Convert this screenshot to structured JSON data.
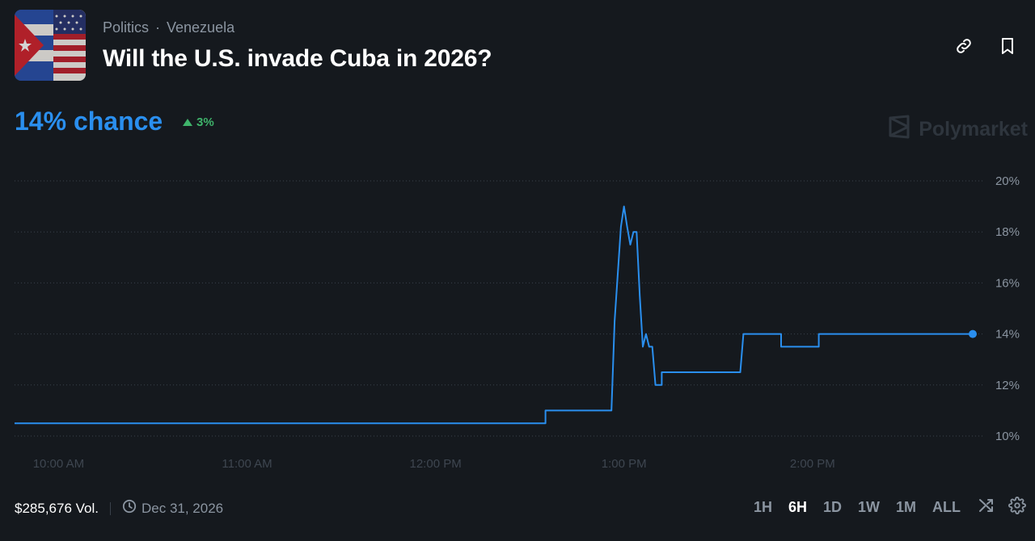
{
  "header": {
    "breadcrumb": [
      "Politics",
      "Venezuela"
    ],
    "separator": "·",
    "title": "Will the U.S. invade Cuba in 2026?"
  },
  "price": {
    "chance_text": "14% chance",
    "change_text": "3%",
    "change_direction": "up",
    "up_color": "#3fb46b",
    "accent": "#2a8fef"
  },
  "brand": "Polymarket",
  "footer": {
    "volume": "$285,676 Vol.",
    "end_date": "Dec 31, 2026"
  },
  "ranges": [
    {
      "label": "1H",
      "active": false
    },
    {
      "label": "6H",
      "active": true
    },
    {
      "label": "1D",
      "active": false
    },
    {
      "label": "1W",
      "active": false
    },
    {
      "label": "1M",
      "active": false
    },
    {
      "label": "ALL",
      "active": false
    }
  ],
  "icons": {
    "link": "link-icon",
    "bookmark": "bookmark-icon",
    "clock": "clock-icon",
    "shuffle": "shuffle-icon",
    "settings": "gear-icon"
  },
  "chart_data": {
    "type": "line",
    "title": "",
    "xlabel": "",
    "ylabel": "",
    "ylim": [
      9.7,
      20.3
    ],
    "y_ticks": [
      10,
      12,
      14,
      16,
      18,
      20
    ],
    "y_tick_labels": [
      "10%",
      "12%",
      "14%",
      "16%",
      "18%",
      "20%"
    ],
    "x_range": [
      "09:46",
      "14:51"
    ],
    "x_ticks": [
      "10:00",
      "11:00",
      "12:00",
      "13:00",
      "14:00"
    ],
    "x_tick_labels": [
      "10:00 AM",
      "11:00 AM",
      "12:00 PM",
      "1:00 PM",
      "2:00 PM"
    ],
    "grid": "horizontal-dotted",
    "line_color": "#2a8fef",
    "series": [
      {
        "points": [
          [
            "09:46",
            10.5
          ],
          [
            "12:35",
            10.5
          ],
          [
            "12:35",
            11.0
          ],
          [
            "12:56",
            11.0
          ],
          [
            "12:57",
            14.5
          ],
          [
            "12:59",
            18.2
          ],
          [
            "13:00",
            19.0
          ],
          [
            "13:01",
            18.2
          ],
          [
            "13:02",
            17.5
          ],
          [
            "13:03",
            18.0
          ],
          [
            "13:04",
            18.0
          ],
          [
            "13:05",
            15.5
          ],
          [
            "13:06",
            13.5
          ],
          [
            "13:07",
            14.0
          ],
          [
            "13:08",
            13.5
          ],
          [
            "13:09",
            13.5
          ],
          [
            "13:10",
            12.0
          ],
          [
            "13:12",
            12.0
          ],
          [
            "13:12",
            12.5
          ],
          [
            "13:37",
            12.5
          ],
          [
            "13:38",
            14.0
          ],
          [
            "13:50",
            14.0
          ],
          [
            "13:50",
            13.5
          ],
          [
            "14:02",
            13.5
          ],
          [
            "14:02",
            14.0
          ],
          [
            "14:51",
            14.0
          ]
        ]
      }
    ]
  }
}
